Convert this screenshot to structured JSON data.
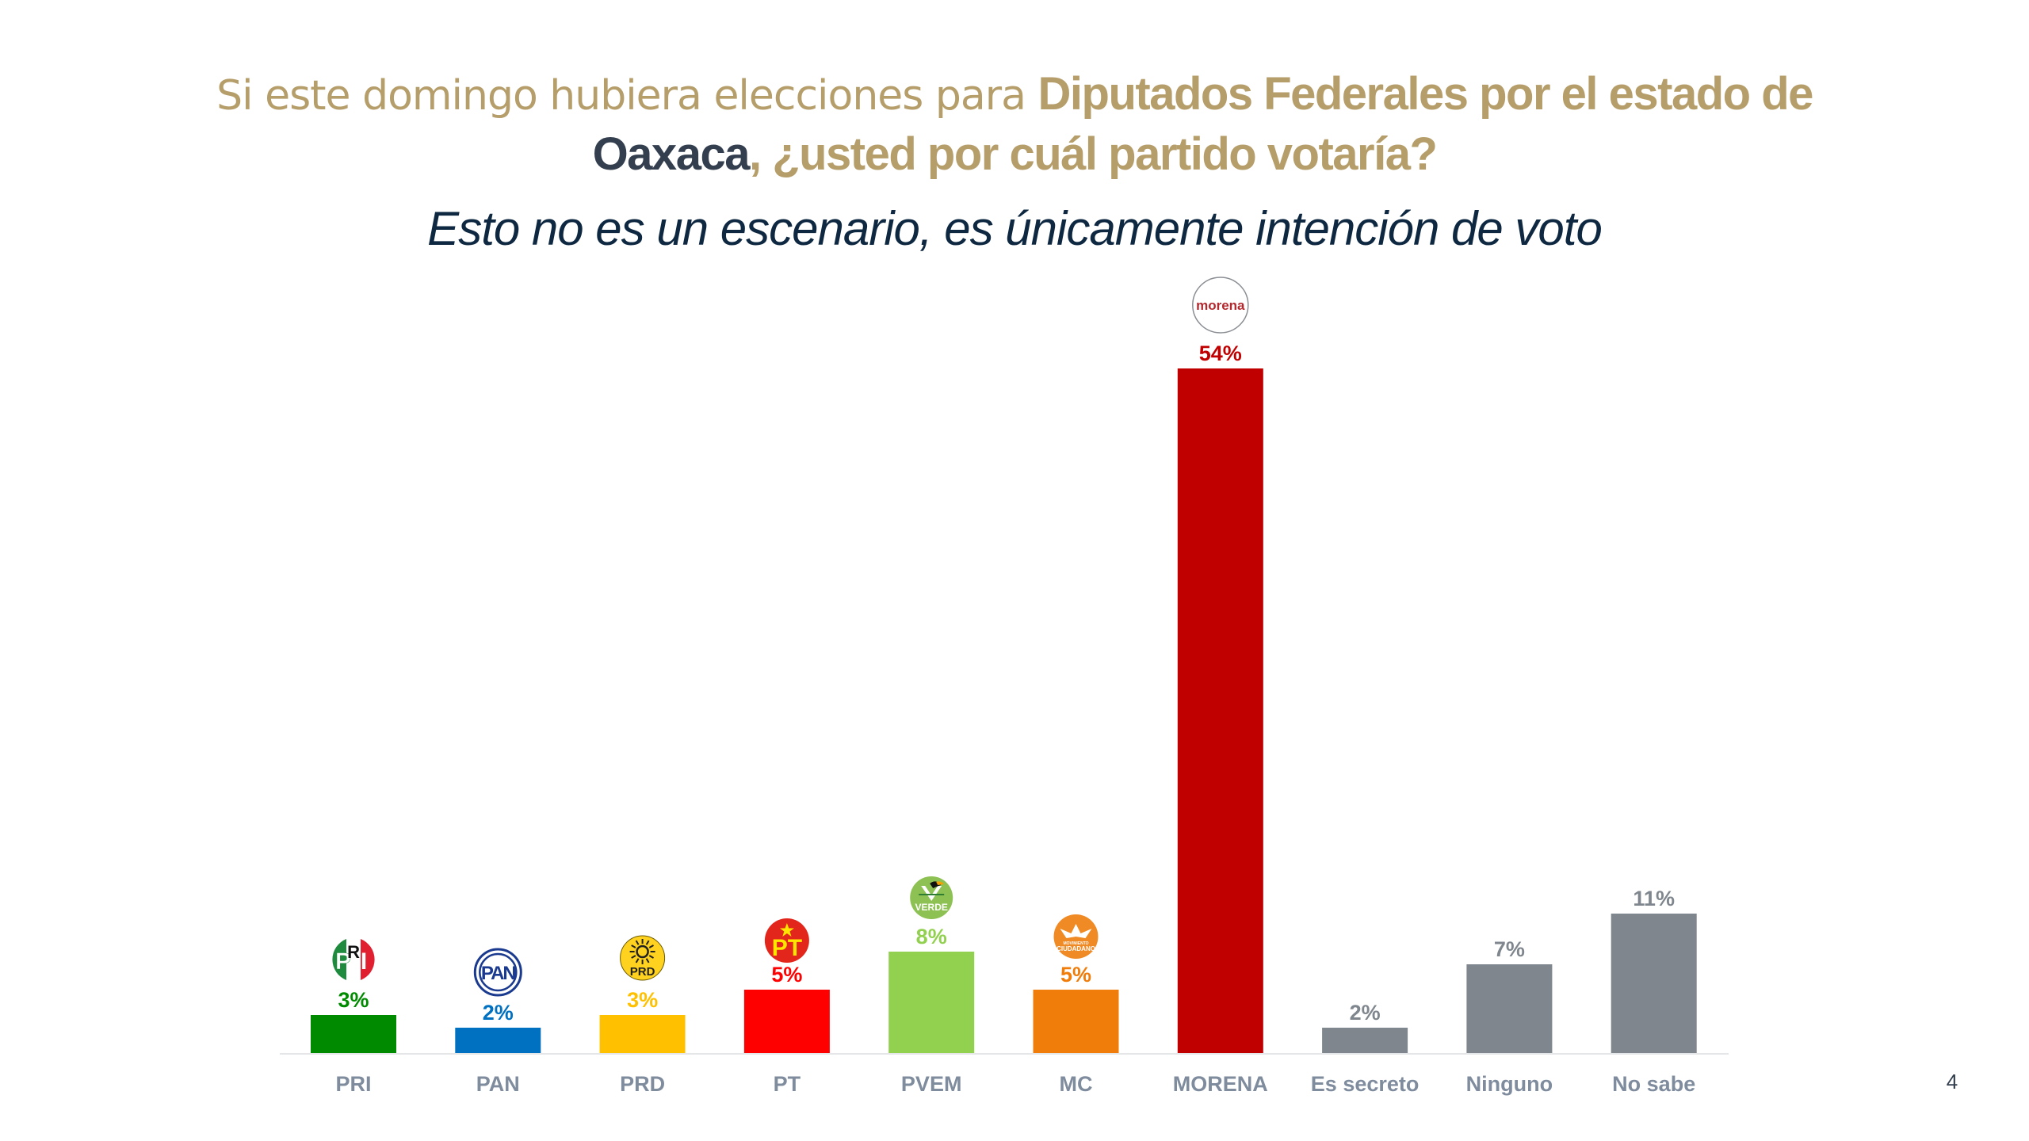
{
  "header": {
    "title_line1_pre": "Si este domingo hubiera elecciones para ",
    "title_line1_bold": "Diputados Federales por el estado de",
    "title_line2_place": "Oaxaca",
    "title_line2_rest": ", ¿usted por cuál partido votaría?",
    "subtitle": "Esto no es un escenario, es únicamente intención de voto"
  },
  "page_number": "4",
  "colors": {
    "title_gold": "#B69E6B",
    "title_dark": "#333F4F",
    "subtitle": "#0E2841",
    "axis_label": "#7F8C9E"
  },
  "chart_data": {
    "type": "bar",
    "title": "Si este domingo hubiera elecciones para Diputados Federales por el estado de Oaxaca, ¿usted por cuál partido votaría?",
    "subtitle": "Esto no es un escenario, es únicamente intención de voto",
    "xlabel": "",
    "ylabel": "",
    "ylim": [
      0,
      54
    ],
    "grid": false,
    "legend": "none",
    "unit": "%",
    "categories": [
      "PRI",
      "PAN",
      "PRD",
      "PT",
      "PVEM",
      "MC",
      "MORENA",
      "Es secreto",
      "Ninguno",
      "No sabe"
    ],
    "values": [
      3,
      2,
      3,
      5,
      8,
      5,
      54,
      2,
      7,
      11
    ],
    "labels": [
      "3%",
      "2%",
      "3%",
      "5%",
      "8%",
      "5%",
      "54%",
      "2%",
      "7%",
      "11%"
    ],
    "bar_colors": [
      "#008A00",
      "#0070C0",
      "#FFC000",
      "#FF0000",
      "#92D050",
      "#F07C0A",
      "#C00000",
      "#7F868D",
      "#7F868D",
      "#7F868D"
    ],
    "label_colors": [
      "#008A00",
      "#0070C0",
      "#FFC000",
      "#FF0000",
      "#92D050",
      "#F07C0A",
      "#C00000",
      "#7F868D",
      "#7F868D",
      "#7F868D"
    ],
    "logos": [
      "pri-logo",
      "pan-logo",
      "prd-logo",
      "pt-logo",
      "pvem-logo",
      "mc-logo",
      "morena-logo",
      null,
      null,
      null
    ]
  },
  "logos": {
    "pri": "PRI",
    "pan": "PAN",
    "prd": "PRD",
    "pt": "PT",
    "pvem": "VERDE",
    "mc_top": "MOVIMIENTO",
    "mc_bottom": "CIUDADANO",
    "morena": "morena"
  }
}
